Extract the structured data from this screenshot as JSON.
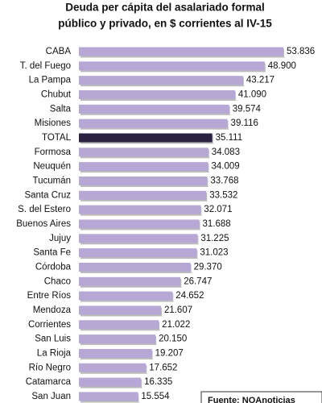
{
  "chart_data": {
    "type": "bar",
    "orientation": "horizontal",
    "title": [
      "Deuda per cápita del asalariado formal",
      "público y privado, en $ corrientes al IV-15"
    ],
    "categories": [
      "CABA",
      "T. del Fuego",
      "La Pampa",
      "Chubut",
      "Salta",
      "Misiones",
      "TOTAL",
      "Formosa",
      "Neuquén",
      "Tucumán",
      "Santa Cruz",
      "S. del Estero",
      "Buenos Aires",
      "Jujuy",
      "Santa Fe",
      "Córdoba",
      "Chaco",
      "Entre Ríos",
      "Mendoza",
      "Corrientes",
      "San Luis",
      "La Rioja",
      "Río Negro",
      "Catamarca",
      "San Juan"
    ],
    "values": [
      53836,
      48900,
      43217,
      41090,
      39574,
      39116,
      35111,
      34083,
      34009,
      33768,
      33532,
      32071,
      31688,
      31225,
      31023,
      29370,
      26747,
      24652,
      21607,
      21022,
      20150,
      19207,
      17652,
      16335,
      15554
    ],
    "value_labels": [
      "53.836",
      "48.900",
      "43.217",
      "41.090",
      "39.574",
      "39.116",
      "35.111",
      "34.083",
      "34.009",
      "33.768",
      "33.532",
      "32.071",
      "31.688",
      "31.225",
      "31.023",
      "29.370",
      "26.747",
      "24.652",
      "21.607",
      "21.022",
      "20.150",
      "19.207",
      "17.652",
      "16.335",
      "15.554"
    ],
    "colors": [
      "#b6a7d4",
      "#b6a7d4",
      "#b6a7d4",
      "#b6a7d4",
      "#b6a7d4",
      "#b6a7d4",
      "#2b2140",
      "#b6a7d4",
      "#b6a7d4",
      "#b6a7d4",
      "#b6a7d4",
      "#b6a7d4",
      "#b6a7d4",
      "#b6a7d4",
      "#b6a7d4",
      "#b6a7d4",
      "#b6a7d4",
      "#b6a7d4",
      "#b6a7d4",
      "#b6a7d4",
      "#b6a7d4",
      "#b6a7d4",
      "#b6a7d4",
      "#b6a7d4",
      "#b6a7d4"
    ],
    "source": "Fuente: NOAnoticias"
  }
}
